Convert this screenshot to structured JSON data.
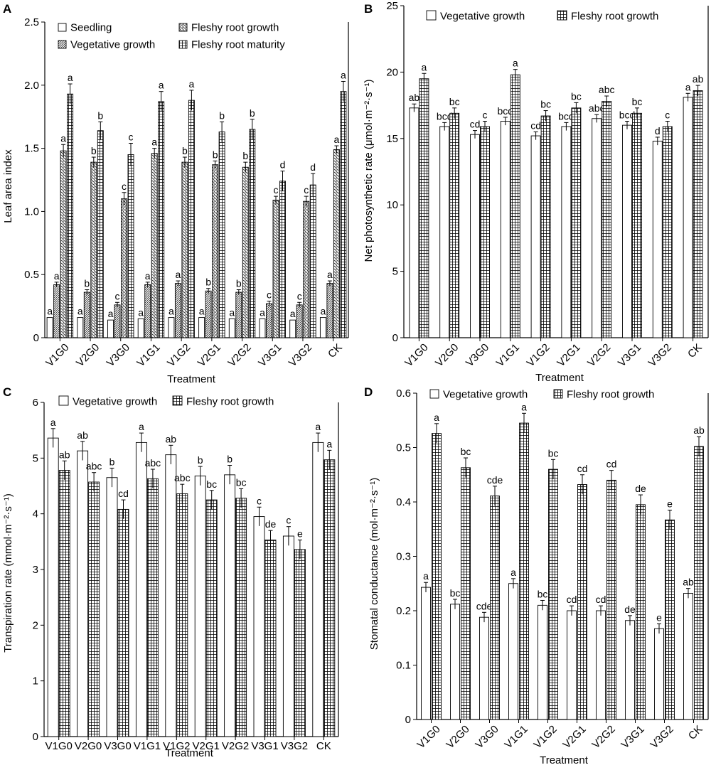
{
  "chart_data": [
    {
      "panel": "A",
      "type": "bar",
      "categories": [
        "V1G0",
        "V2G0",
        "V3G0",
        "V1G1",
        "V1G2",
        "V2G1",
        "V2G2",
        "V3G1",
        "V3G2",
        "CK"
      ],
      "xlabel": "Treatment",
      "ylabel": "Leaf area index",
      "ylim": [
        0,
        2.5
      ],
      "yticks": [
        "0",
        "0.5",
        "1.0",
        "1.5",
        "2.0",
        "2.5"
      ],
      "ytick_values": [
        0,
        0.5,
        1.0,
        1.5,
        2.0,
        2.5
      ],
      "legend_columns": 2,
      "legend_order": [
        0,
        2,
        1,
        3
      ],
      "series": [
        {
          "name": "Seedling",
          "pattern": "white",
          "values": [
            0.16,
            0.16,
            0.14,
            0.15,
            0.16,
            0.16,
            0.15,
            0.15,
            0.14,
            0.16
          ],
          "errors": [
            0,
            0,
            0,
            0,
            0,
            0,
            0,
            0,
            0,
            0
          ],
          "labels": [
            "a",
            "a",
            "a",
            "a",
            "a",
            "a",
            "a",
            "a",
            "a",
            "a"
          ]
        },
        {
          "name": "Vegetative growth",
          "pattern": "diag-dense",
          "values": [
            0.42,
            0.36,
            0.26,
            0.42,
            0.43,
            0.37,
            0.36,
            0.27,
            0.26,
            0.43
          ],
          "errors": [
            0.02,
            0.02,
            0.02,
            0.02,
            0.02,
            0.02,
            0.02,
            0.02,
            0.02,
            0.02
          ],
          "labels": [
            "a",
            "b",
            "c",
            "a",
            "a",
            "b",
            "b",
            "c",
            "c",
            "a"
          ]
        },
        {
          "name": "Fleshy root growth",
          "pattern": "diag-cross",
          "values": [
            1.48,
            1.39,
            1.1,
            1.46,
            1.39,
            1.37,
            1.35,
            1.09,
            1.08,
            1.49
          ],
          "errors": [
            0.05,
            0.04,
            0.05,
            0.04,
            0.04,
            0.03,
            0.04,
            0.03,
            0.04,
            0.03
          ],
          "labels": [
            "a",
            "b",
            "c",
            "a",
            "b",
            "b",
            "b",
            "c",
            "c",
            "a"
          ]
        },
        {
          "name": "Fleshy root maturity",
          "pattern": "grid",
          "values": [
            1.93,
            1.64,
            1.45,
            1.87,
            1.88,
            1.63,
            1.65,
            1.24,
            1.21,
            1.95
          ],
          "errors": [
            0.08,
            0.07,
            0.09,
            0.08,
            0.08,
            0.08,
            0.08,
            0.08,
            0.09,
            0.08
          ],
          "labels": [
            "a",
            "b",
            "c",
            "a",
            "a",
            "b",
            "b",
            "d",
            "d",
            "a"
          ]
        }
      ]
    },
    {
      "panel": "B",
      "type": "bar",
      "categories": [
        "V1G0",
        "V2G0",
        "V3G0",
        "V1G1",
        "V1G2",
        "V2G1",
        "V2G2",
        "V3G1",
        "V3G2",
        "CK"
      ],
      "xlabel": "Treatment",
      "ylabel": "Net photosynthetic rate (μmol·m⁻²·s⁻¹)",
      "ylim": [
        0,
        25
      ],
      "yticks": [
        "0",
        "5",
        "10",
        "15",
        "20",
        "25"
      ],
      "ytick_values": [
        0,
        5,
        10,
        15,
        20,
        25
      ],
      "legend_columns": 2,
      "legend_order": [
        0,
        1
      ],
      "series": [
        {
          "name": "Vegetative growth",
          "pattern": "white",
          "values": [
            17.3,
            15.9,
            15.3,
            16.3,
            15.2,
            15.9,
            16.5,
            16.0,
            14.8,
            18.1
          ],
          "errors": [
            0.3,
            0.3,
            0.3,
            0.3,
            0.3,
            0.3,
            0.3,
            0.3,
            0.3,
            0.3
          ],
          "labels": [
            "ab",
            "bcd",
            "cd",
            "bcd",
            "cd",
            "bcd",
            "abc",
            "bcd",
            "d",
            "a"
          ]
        },
        {
          "name": "Fleshy root growth",
          "pattern": "grid",
          "values": [
            19.5,
            16.9,
            15.9,
            19.8,
            16.7,
            17.3,
            17.8,
            16.9,
            15.9,
            18.6
          ],
          "errors": [
            0.4,
            0.4,
            0.4,
            0.4,
            0.4,
            0.4,
            0.4,
            0.4,
            0.4,
            0.4
          ],
          "labels": [
            "a",
            "bc",
            "c",
            "a",
            "bc",
            "bc",
            "abc",
            "bc",
            "c",
            "ab"
          ]
        }
      ]
    },
    {
      "panel": "C",
      "type": "bar",
      "categories": [
        "V1G0",
        "V2G0",
        "V3G0",
        "V1G1",
        "V1G2",
        "V2G1",
        "V2G2",
        "V3G1",
        "V3G2",
        "CK"
      ],
      "xlabel": "Treatment",
      "ylabel": "Transpiration rate (mmol·m⁻²·s⁻¹)",
      "ylim": [
        0,
        6
      ],
      "yticks": [
        "0",
        "1",
        "2",
        "3",
        "4",
        "5",
        "6"
      ],
      "ytick_values": [
        0,
        1,
        2,
        3,
        4,
        5,
        6
      ],
      "legend_columns": 2,
      "legend_order": [
        0,
        1
      ],
      "series": [
        {
          "name": "Vegetative growth",
          "pattern": "white",
          "values": [
            5.36,
            5.13,
            4.65,
            5.28,
            5.06,
            4.68,
            4.7,
            3.95,
            3.6,
            5.28
          ],
          "errors": [
            0.17,
            0.17,
            0.17,
            0.17,
            0.17,
            0.17,
            0.17,
            0.17,
            0.17,
            0.17
          ],
          "labels": [
            "a",
            "ab",
            "b",
            "a",
            "ab",
            "b",
            "b",
            "c",
            "c",
            "a"
          ]
        },
        {
          "name": "Fleshy root growth",
          "pattern": "grid",
          "values": [
            4.78,
            4.57,
            4.08,
            4.63,
            4.36,
            4.25,
            4.28,
            3.53,
            3.36,
            4.97
          ],
          "errors": [
            0.17,
            0.17,
            0.17,
            0.17,
            0.17,
            0.17,
            0.17,
            0.17,
            0.17,
            0.17
          ],
          "labels": [
            "ab",
            "abc",
            "cd",
            "abc",
            "abc",
            "bc",
            "bc",
            "de",
            "e",
            "a"
          ]
        }
      ]
    },
    {
      "panel": "D",
      "type": "bar",
      "categories": [
        "V1G0",
        "V2G0",
        "V3G0",
        "V1G1",
        "V1G2",
        "V2G1",
        "V2G2",
        "V3G1",
        "V3G2",
        "CK"
      ],
      "xlabel": "Treatment",
      "ylabel": "Stomatal conductance (mol·m⁻²·s⁻¹)",
      "ylim": [
        0,
        0.6
      ],
      "yticks": [
        "0",
        "0.1",
        "0.2",
        "0.3",
        "0.4",
        "0.5",
        "0.6"
      ],
      "ytick_values": [
        0,
        0.1,
        0.2,
        0.3,
        0.4,
        0.5,
        0.6
      ],
      "legend_columns": 2,
      "legend_order": [
        0,
        1
      ],
      "series": [
        {
          "name": "Vegetative growth",
          "pattern": "white",
          "values": [
            0.243,
            0.212,
            0.188,
            0.25,
            0.21,
            0.2,
            0.2,
            0.182,
            0.167,
            0.232
          ],
          "errors": [
            0.009,
            0.009,
            0.009,
            0.009,
            0.009,
            0.009,
            0.009,
            0.009,
            0.009,
            0.009
          ],
          "labels": [
            "a",
            "bc",
            "cde",
            "a",
            "bc",
            "cd",
            "cd",
            "de",
            "e",
            "ab"
          ]
        },
        {
          "name": "Fleshy root growth",
          "pattern": "grid",
          "values": [
            0.526,
            0.463,
            0.411,
            0.545,
            0.46,
            0.432,
            0.44,
            0.395,
            0.367,
            0.502
          ],
          "errors": [
            0.018,
            0.018,
            0.018,
            0.018,
            0.018,
            0.018,
            0.018,
            0.018,
            0.018,
            0.018
          ],
          "labels": [
            "a",
            "bc",
            "cde",
            "a",
            "bc",
            "cd",
            "cd",
            "de",
            "e",
            "ab"
          ]
        }
      ]
    }
  ]
}
